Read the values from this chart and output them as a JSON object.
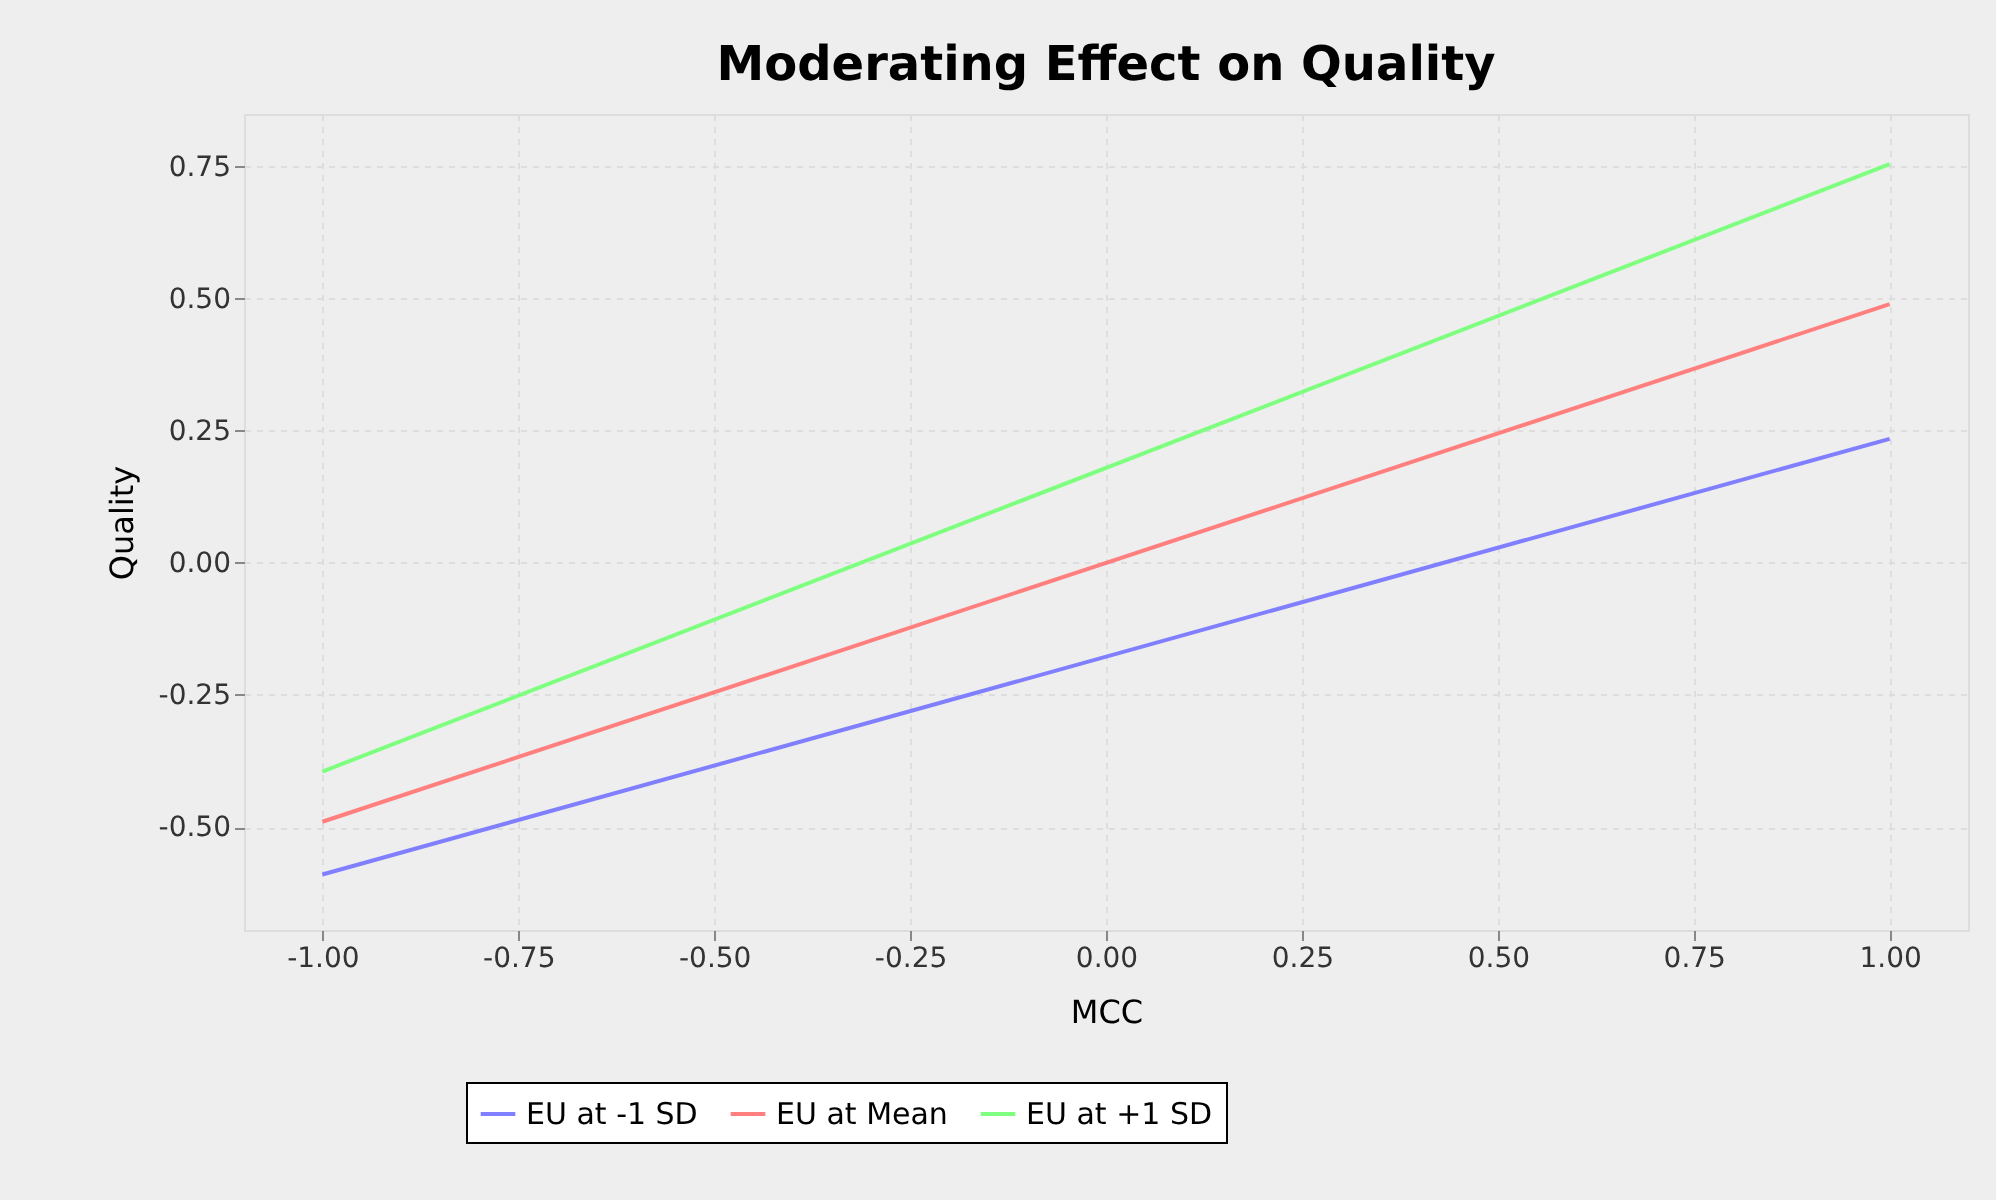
{
  "chart_data": {
    "type": "line",
    "title": "Moderating Effect on Quality",
    "xlabel": "MCC",
    "ylabel": "Quality",
    "x": [
      -1.0,
      1.0
    ],
    "series": [
      {
        "name": "EU at -1 SD",
        "color": "#7f7fff",
        "values": [
          -0.59,
          0.235
        ]
      },
      {
        "name": "EU at Mean",
        "color": "#ff7f7f",
        "values": [
          -0.49,
          0.49
        ]
      },
      {
        "name": "EU at +1 SD",
        "color": "#7fff7f",
        "values": [
          -0.395,
          0.755
        ]
      }
    ],
    "xlim": [
      -1.1,
      1.1
    ],
    "xticks": [
      {
        "value": -1.0,
        "label": "-1.00"
      },
      {
        "value": -0.75,
        "label": "-0.75"
      },
      {
        "value": -0.5,
        "label": "-0.50"
      },
      {
        "value": -0.25,
        "label": "-0.25"
      },
      {
        "value": 0.0,
        "label": "0.00"
      },
      {
        "value": 0.25,
        "label": "0.25"
      },
      {
        "value": 0.5,
        "label": "0.50"
      },
      {
        "value": 0.75,
        "label": "0.75"
      },
      {
        "value": 1.0,
        "label": "1.00"
      }
    ],
    "ylim": [
      -0.695,
      0.85
    ],
    "yticks": [
      {
        "value": -0.5,
        "label": "-0.50"
      },
      {
        "value": -0.25,
        "label": "-0.25"
      },
      {
        "value": 0.0,
        "label": "0.00"
      },
      {
        "value": 0.25,
        "label": "0.25"
      },
      {
        "value": 0.5,
        "label": "0.50"
      },
      {
        "value": 0.75,
        "label": "0.75"
      }
    ],
    "grid": true,
    "legend": "bottom",
    "marker": "none",
    "line_style": "solid"
  }
}
